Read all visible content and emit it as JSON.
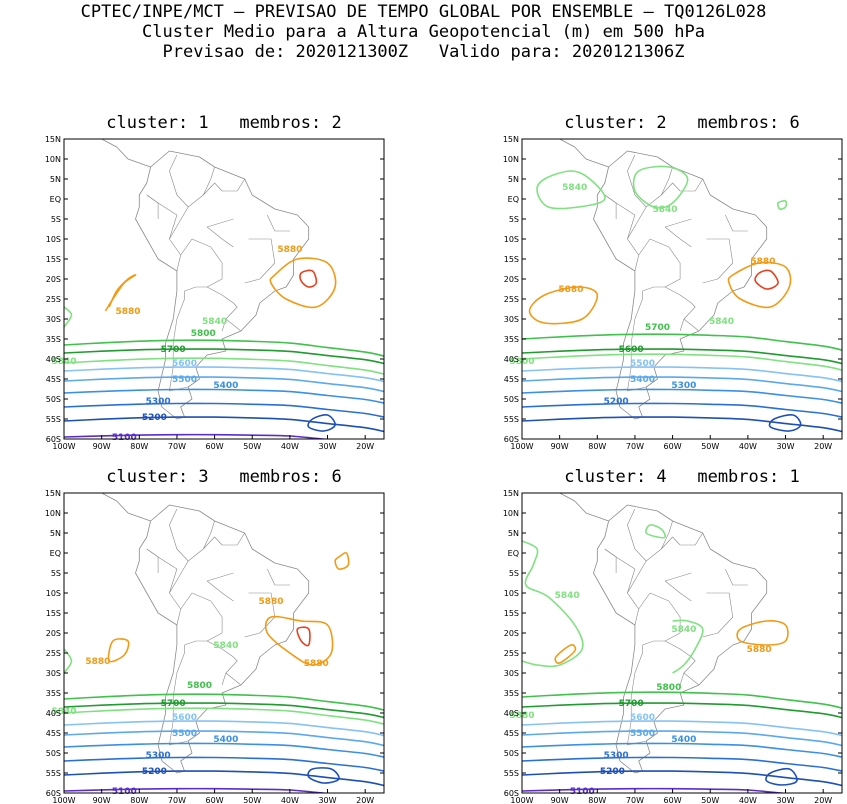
{
  "header": {
    "line1": "CPTEC/INPE/MCT – PREVISAO DE TEMPO GLOBAL POR ENSEMBLE – TQ0126L028",
    "line2": "Cluster Medio para a Altura Geopotencial (m) em 500 hPa",
    "line3": "Previsao de: 2020121300Z   Valido para: 2020121306Z"
  },
  "colors": {
    "c5100": "#5a2ccf",
    "c5200": "#1d4fb8",
    "c5300": "#2a6fd6",
    "c5400": "#3a8fe6",
    "c5500": "#5ba8ef",
    "c5600": "#86c2f5",
    "c5700": "#1f9b2f",
    "c5800": "#3fc24a",
    "c5840": "#7fe17f",
    "c5880": "#f39a12",
    "c5920": "#e8401f",
    "coast": "#8a8a8a"
  },
  "lat_labels": [
    "15N",
    "10N",
    "5N",
    "EQ",
    "5S",
    "10S",
    "15S",
    "20S",
    "25S",
    "30S",
    "35S",
    "40S",
    "45S",
    "50S",
    "55S",
    "60S"
  ],
  "lon_labels": [
    "100W",
    "90W",
    "80W",
    "70W",
    "60W",
    "50W",
    "40W",
    "30W",
    "20W"
  ],
  "panels": [
    {
      "title": "cluster: 1   membros: 2",
      "labels": [
        "5880",
        "5880",
        "5840",
        "5840",
        "5800",
        "5700",
        "5600",
        "5500",
        "5400",
        "5300",
        "5200",
        "5100"
      ]
    },
    {
      "title": "cluster: 2   membros: 6",
      "labels": [
        "5840",
        "5840",
        "5880",
        "5880",
        "5840",
        "5800",
        "5700",
        "5600",
        "5500",
        "5400",
        "5300",
        "5200"
      ]
    },
    {
      "title": "cluster: 3   membros: 6",
      "labels": [
        "5880",
        "5880",
        "5880",
        "5840",
        "5840",
        "5800",
        "5700",
        "5600",
        "5500",
        "5400",
        "5300",
        "5200",
        "5100"
      ]
    },
    {
      "title": "cluster: 4   membros: 1",
      "labels": [
        "5840",
        "5840",
        "5880",
        "5880",
        "5800",
        "5700",
        "5600",
        "5500",
        "5400",
        "5300",
        "5200",
        "5100"
      ]
    }
  ]
}
